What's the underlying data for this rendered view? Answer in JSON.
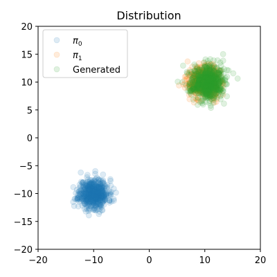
{
  "chart_data": {
    "type": "scatter",
    "title": "Distribution",
    "xlabel": "",
    "ylabel": "",
    "xlim": [
      -20,
      20
    ],
    "ylim": [
      -20,
      20
    ],
    "xticks": [
      -20,
      -10,
      0,
      10,
      20
    ],
    "yticks": [
      -20,
      -15,
      -10,
      -5,
      0,
      5,
      10,
      15,
      20
    ],
    "grid": false,
    "legend_position": "upper-left",
    "series": [
      {
        "name": "π0",
        "name_parts": [
          "π",
          "0"
        ],
        "color": "#1f77b4",
        "opacity": 0.15,
        "cluster": {
          "center": [
            -10,
            -10
          ],
          "spread": 1.3,
          "count": 600
        },
        "seed": 11
      },
      {
        "name": "π1",
        "name_parts": [
          "π",
          "1"
        ],
        "color": "#ff7f0e",
        "opacity": 0.15,
        "cluster": {
          "center": [
            10,
            10
          ],
          "spread": 1.3,
          "count": 600
        },
        "seed": 22
      },
      {
        "name": "Generated",
        "name_parts": [
          "Generated",
          ""
        ],
        "color": "#2ca02c",
        "opacity": 0.15,
        "cluster": {
          "center": [
            10.5,
            10
          ],
          "spread": 1.5,
          "count": 700
        },
        "seed": 33
      }
    ]
  }
}
